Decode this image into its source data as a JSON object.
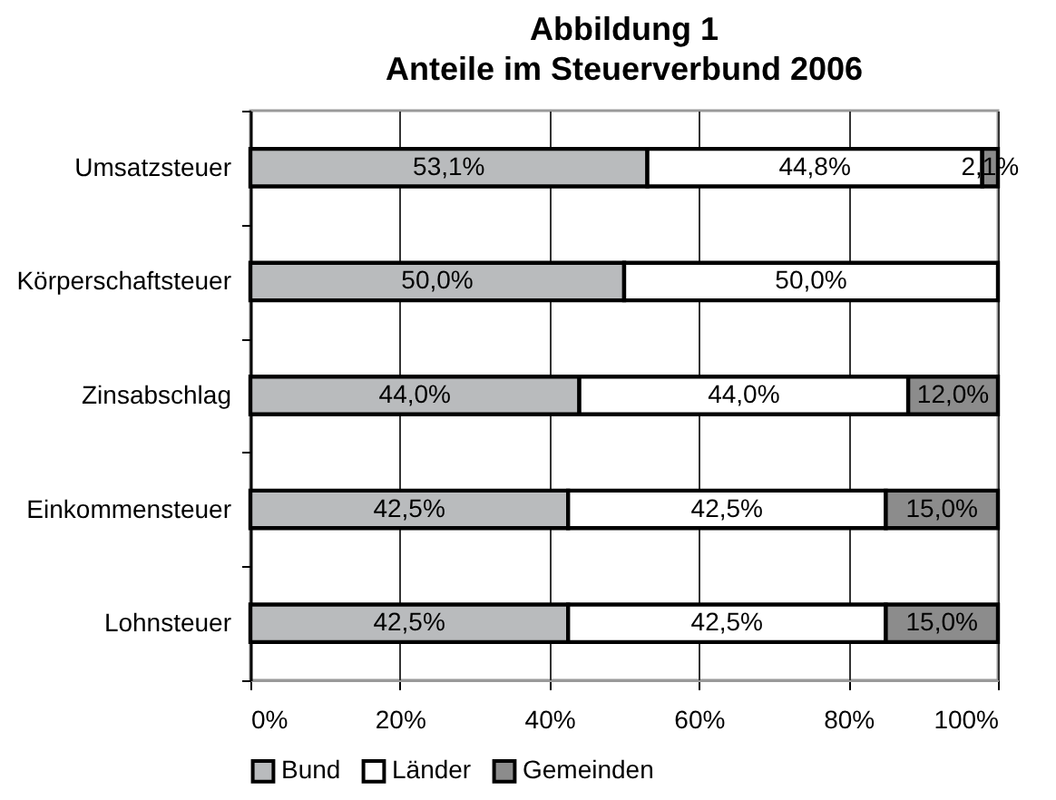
{
  "chart_data": {
    "type": "bar",
    "orientation": "horizontal",
    "stacked": true,
    "title": "Abbildung 1",
    "subtitle": "Anteile im Steuerverbund 2006",
    "categories": [
      "Umsatzsteuer",
      "Körperschaftsteuer",
      "Zinsabschlag",
      "Einkommensteuer",
      "Lohnsteuer"
    ],
    "series": [
      {
        "name": "Bund",
        "color": "#b9bbbd",
        "values": [
          53.1,
          50.0,
          44.0,
          42.5,
          42.5
        ],
        "value_labels": [
          "53,1%",
          "50,0%",
          "44,0%",
          "42,5%",
          "42,5%"
        ]
      },
      {
        "name": "Länder",
        "color": "#ffffff",
        "values": [
          44.8,
          50.0,
          44.0,
          42.5,
          42.5
        ],
        "value_labels": [
          "44,8%",
          "50,0%",
          "44,0%",
          "42,5%",
          "42,5%"
        ]
      },
      {
        "name": "Gemeinden",
        "color": "#8c8c8c",
        "values": [
          2.1,
          null,
          12.0,
          15.0,
          15.0
        ],
        "value_labels": [
          "2,1%",
          null,
          "12,0%",
          "15,0%",
          "15,0%"
        ]
      }
    ],
    "xlim": [
      0,
      100
    ],
    "xticks": [
      {
        "value": 0,
        "label": "0%"
      },
      {
        "value": 20,
        "label": "20%"
      },
      {
        "value": 40,
        "label": "40%"
      },
      {
        "value": 60,
        "label": "60%"
      },
      {
        "value": 80,
        "label": "80%"
      },
      {
        "value": 100,
        "label": "100%"
      }
    ],
    "grid": "x",
    "legend": "bottom"
  }
}
